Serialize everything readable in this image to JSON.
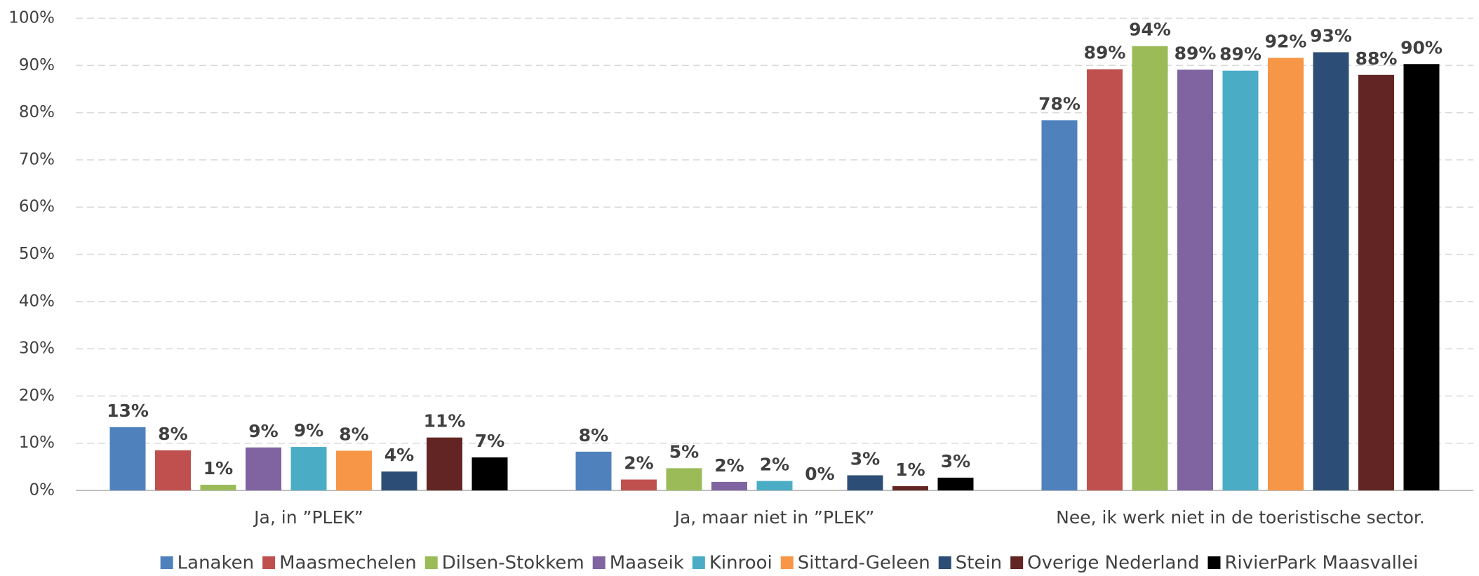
{
  "chart_data": {
    "type": "bar",
    "categories": [
      "Ja, in ”PLEK”",
      "Ja, maar niet in ”PLEK”",
      "Nee, ik werk niet in de toeristische sector."
    ],
    "series": [
      {
        "name": "Lanaken",
        "color": "#4f81bd",
        "values": [
          13.4,
          8.2,
          78.4
        ],
        "value_labels": [
          "13%",
          "8%",
          "78%"
        ]
      },
      {
        "name": "Maasmechelen",
        "color": "#c0504d",
        "values": [
          8.5,
          2.3,
          89.2
        ],
        "value_labels": [
          "8%",
          "2%",
          "89%"
        ]
      },
      {
        "name": "Dilsen-Stokkem",
        "color": "#9bbb59",
        "values": [
          1.2,
          4.7,
          94.1
        ],
        "value_labels": [
          "1%",
          "5%",
          "94%"
        ]
      },
      {
        "name": "Maaseik",
        "color": "#8064a2",
        "values": [
          9.1,
          1.8,
          89.1
        ],
        "value_labels": [
          "9%",
          "2%",
          "89%"
        ]
      },
      {
        "name": "Kinrooi",
        "color": "#4bacc6",
        "values": [
          9.2,
          2.0,
          88.9
        ],
        "value_labels": [
          "9%",
          "2%",
          "89%"
        ]
      },
      {
        "name": "Sittard-Geleen",
        "color": "#f79646",
        "values": [
          8.4,
          0,
          91.6
        ],
        "value_labels": [
          "8%",
          "0%",
          "92%"
        ]
      },
      {
        "name": "Stein",
        "color": "#2c4d75",
        "values": [
          4.0,
          3.2,
          92.8
        ],
        "value_labels": [
          "4%",
          "3%",
          "93%"
        ]
      },
      {
        "name": "Overige Nederland",
        "color": "#632523",
        "values": [
          11.2,
          0.9,
          88.0
        ],
        "value_labels": [
          "11%",
          "1%",
          "88%"
        ]
      },
      {
        "name": "RivierPark Maasvallei",
        "color": "#000000",
        "values": [
          7.0,
          2.7,
          90.3
        ],
        "value_labels": [
          "7%",
          "3%",
          "90%"
        ]
      }
    ],
    "ylim": [
      0,
      100
    ],
    "yticks": [
      {
        "value": 0,
        "label": "0%"
      },
      {
        "value": 10,
        "label": "10%"
      },
      {
        "value": 20,
        "label": "20%"
      },
      {
        "value": 30,
        "label": "30%"
      },
      {
        "value": 40,
        "label": "40%"
      },
      {
        "value": 50,
        "label": "50%"
      },
      {
        "value": 60,
        "label": "60%"
      },
      {
        "value": 70,
        "label": "70%"
      },
      {
        "value": 80,
        "label": "80%"
      },
      {
        "value": 90,
        "label": "90%"
      },
      {
        "value": 100,
        "label": "100%"
      }
    ],
    "grid": true,
    "legend": "bottom"
  }
}
